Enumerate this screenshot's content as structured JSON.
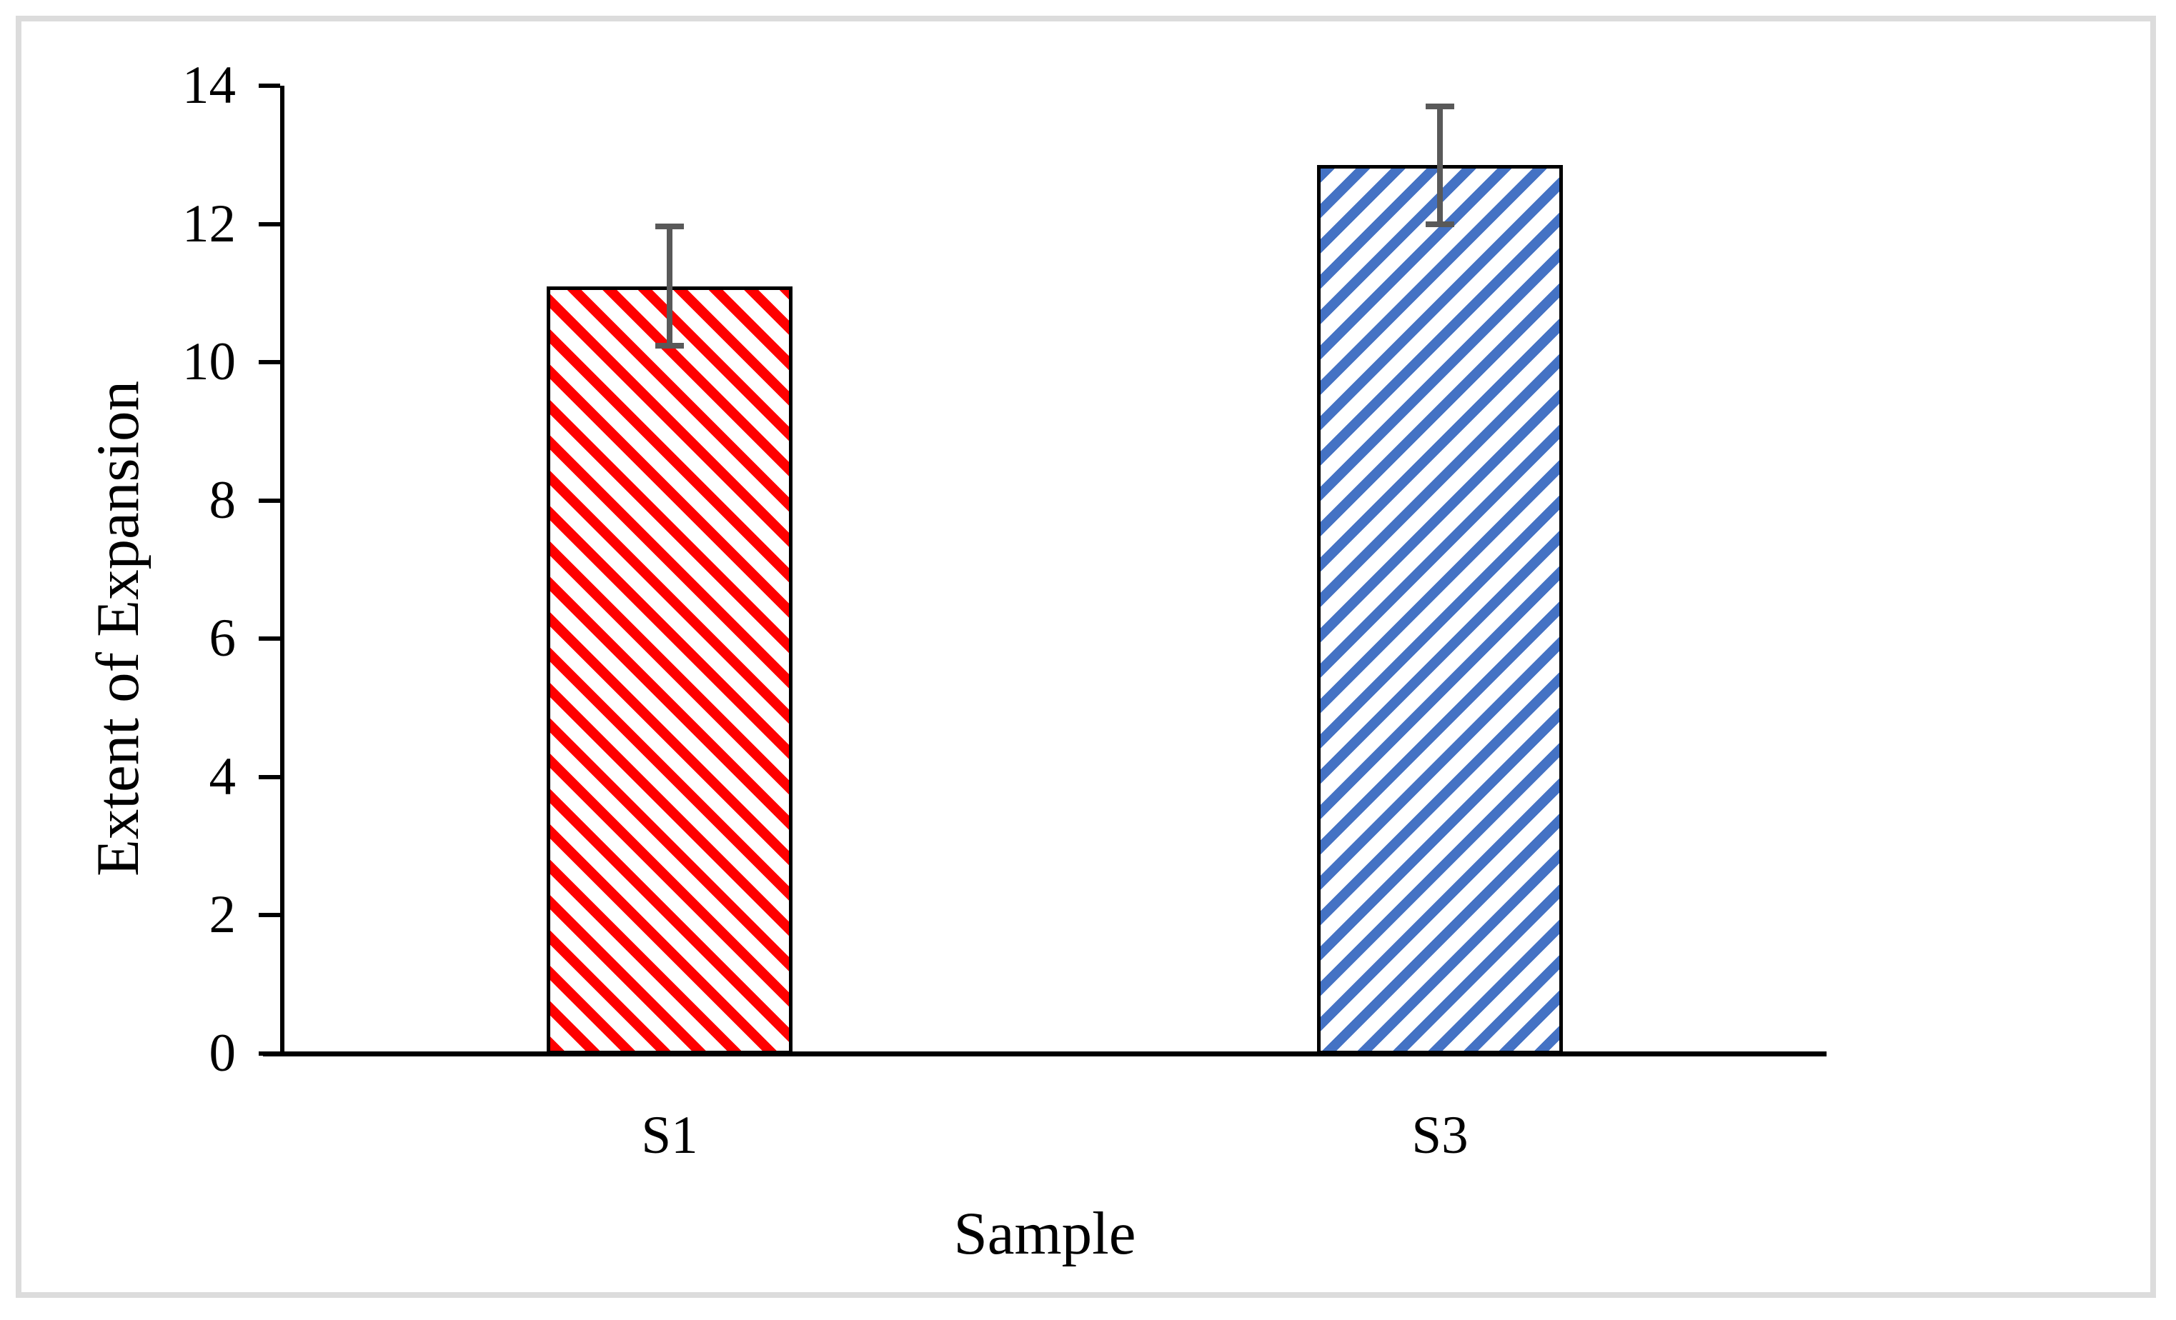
{
  "figure": {
    "background": "#FFFFFF",
    "border_color": "#DCDCDC"
  },
  "chart_data": {
    "type": "bar",
    "title": "",
    "xlabel": "Sample",
    "ylabel": "Extent of Expansion",
    "categories": [
      "S1",
      "S3"
    ],
    "values": [
      11.1,
      12.85
    ],
    "error_bars": [
      0.86,
      0.85
    ],
    "ylim": [
      0,
      14
    ],
    "ytick_step": 2,
    "ytick_labels": [
      "0",
      "2",
      "4",
      "6",
      "8",
      "10",
      "12",
      "14"
    ],
    "grid": false,
    "legend": "none",
    "bar_styles": [
      {
        "name": "S1",
        "stripe_color": "#FF0000",
        "stripe_direction": "down-diagonal",
        "fill": "#FFFFFF",
        "border_color": "#000000"
      },
      {
        "name": "S3",
        "stripe_color": "#4472C4",
        "stripe_direction": "up-diagonal",
        "fill": "#FFFFFF",
        "border_color": "#000000"
      }
    ],
    "error_bar_color": "#595959",
    "axis_color": "#000000"
  }
}
